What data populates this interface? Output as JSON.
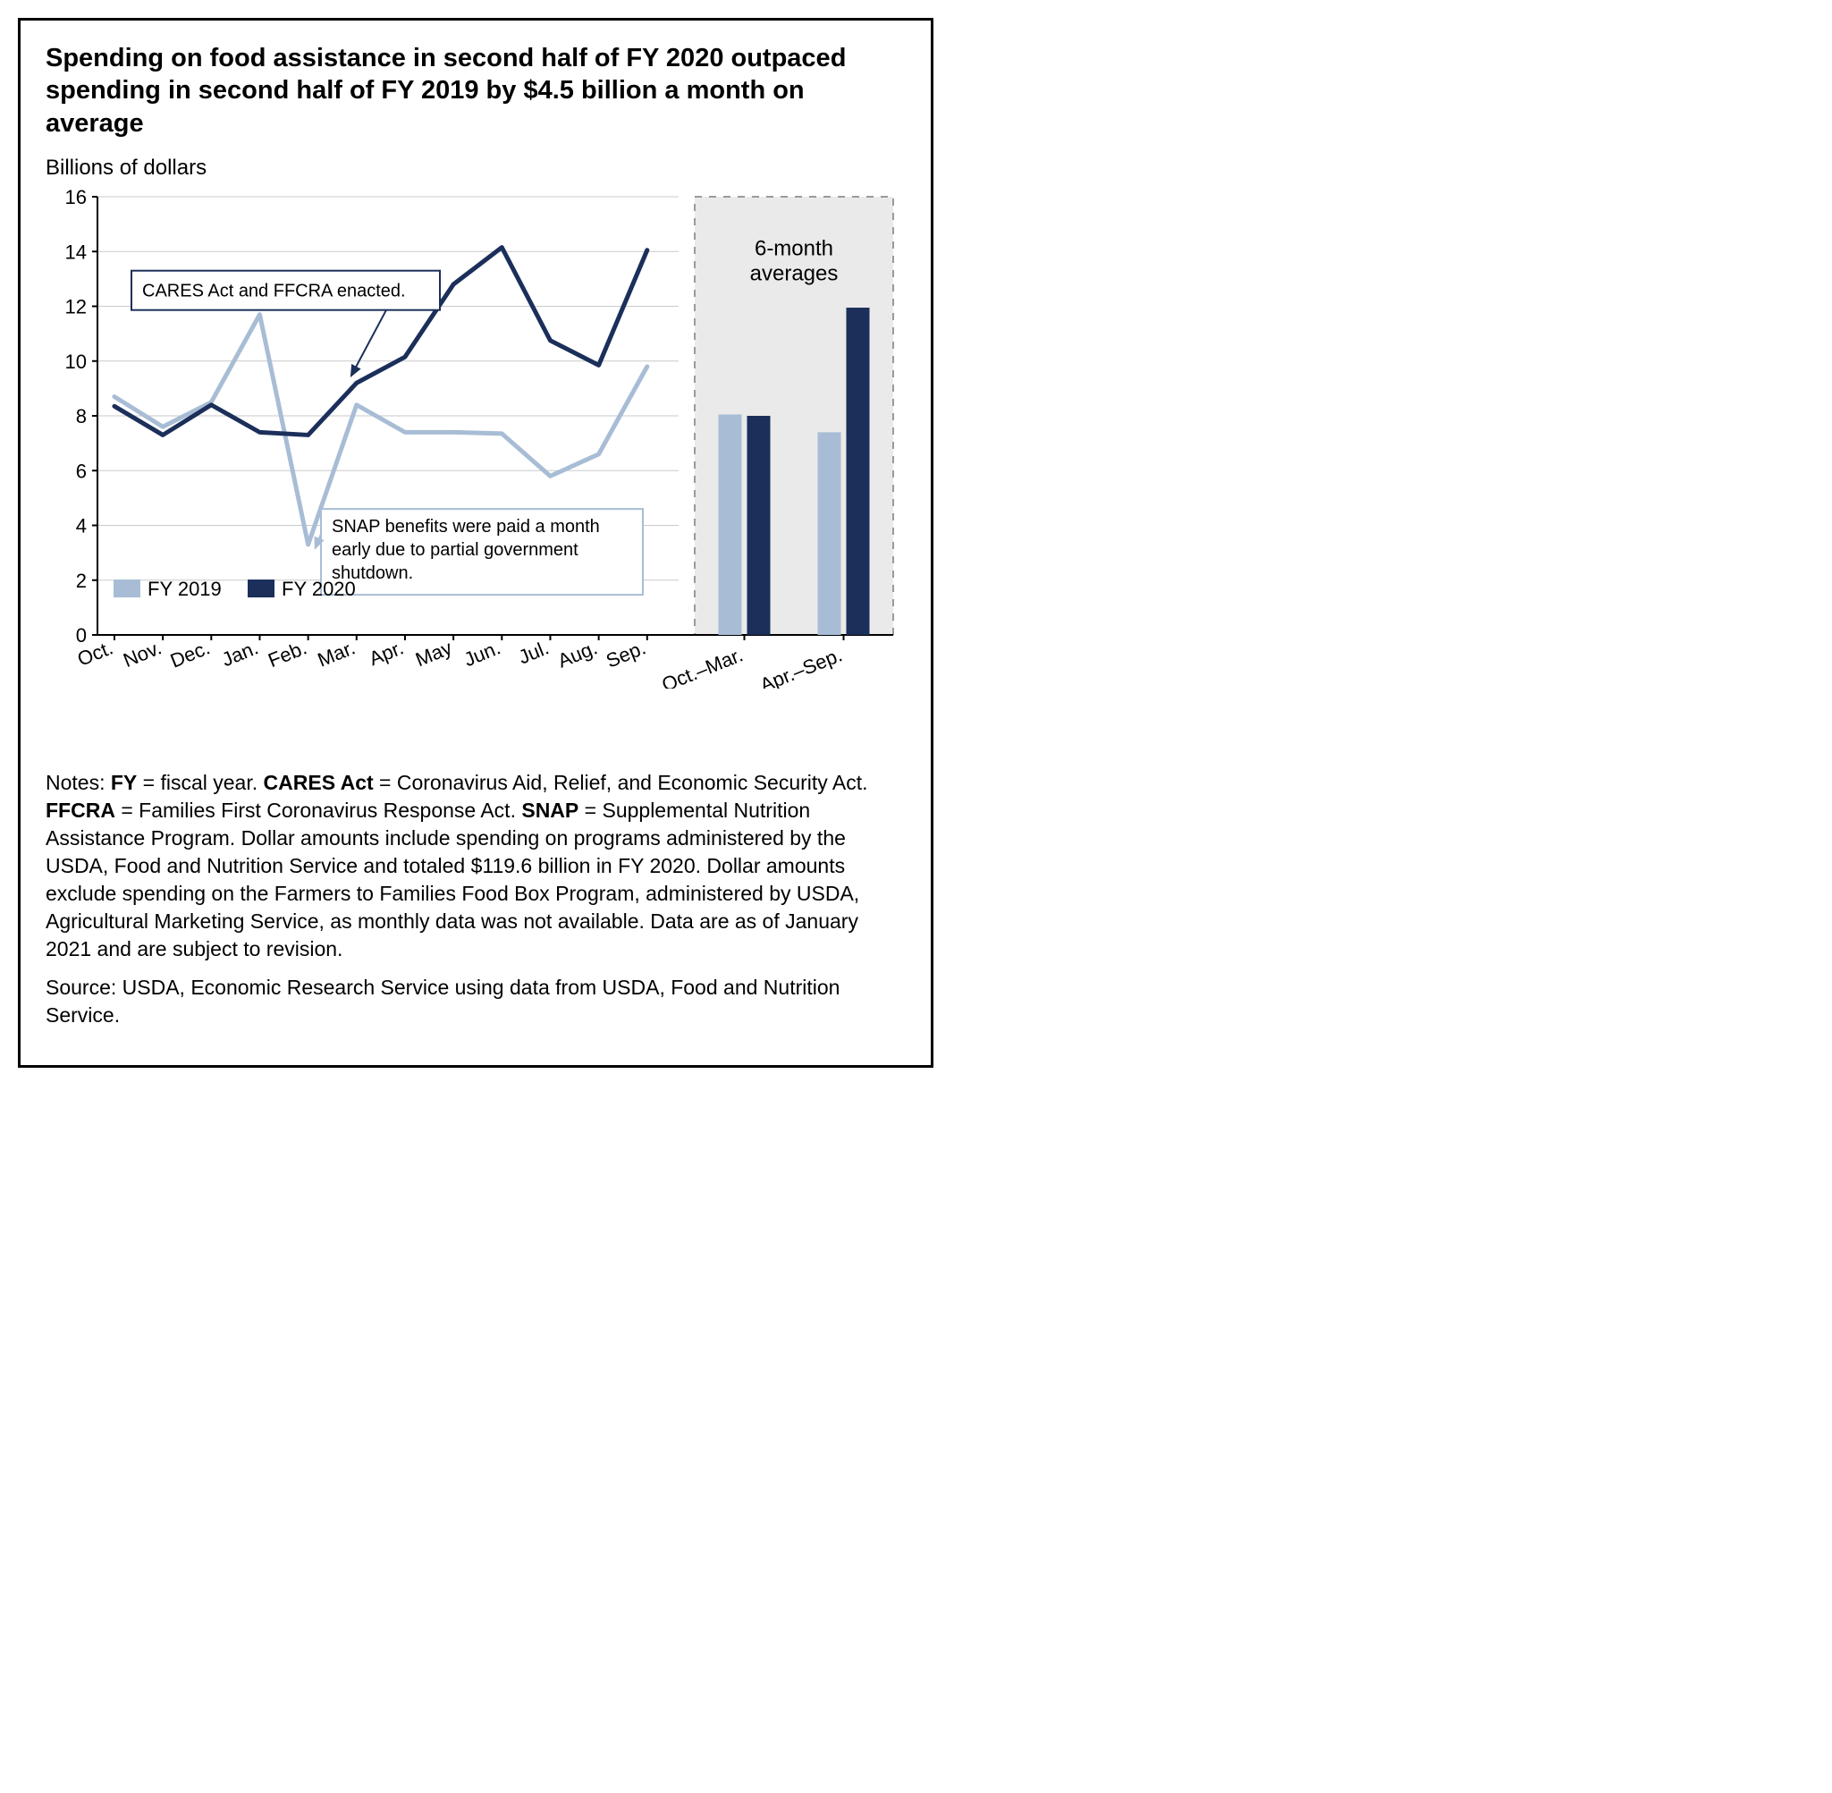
{
  "title": "Spending on food assistance in second half of FY 2020 outpaced spending in second half of FY 2019 by $4.5 billion a month on average",
  "y_axis_label": "Billions of dollars",
  "chart": {
    "type": "line+bar",
    "ylim": [
      0,
      16
    ],
    "ytick_step": 2,
    "yticks": [
      0,
      2,
      4,
      6,
      8,
      10,
      12,
      14,
      16
    ],
    "months": [
      "Oct.",
      "Nov.",
      "Dec.",
      "Jan.",
      "Feb.",
      "Mar.",
      "Apr.",
      "May",
      "Jun.",
      "Jul.",
      "Aug.",
      "Sep."
    ],
    "series": {
      "fy2019": {
        "label": "FY 2019",
        "color": "#a8bdd5",
        "line_width": 5,
        "values": [
          8.7,
          7.6,
          8.5,
          11.7,
          3.3,
          8.4,
          7.4,
          7.4,
          7.35,
          5.8,
          6.6,
          9.8
        ]
      },
      "fy2020": {
        "label": "FY 2020",
        "color": "#1b2f5a",
        "line_width": 5,
        "values": [
          8.35,
          7.3,
          8.4,
          7.4,
          7.3,
          9.2,
          10.15,
          12.8,
          14.15,
          10.75,
          9.85,
          14.05
        ]
      }
    },
    "bar_categories": [
      "Oct.–Mar.",
      "Apr.–Sep."
    ],
    "bars": {
      "fy2019": {
        "color": "#a8bdd5",
        "values": [
          8.05,
          7.4
        ]
      },
      "fy2020": {
        "color": "#1b2f5a",
        "values": [
          8.0,
          11.95
        ]
      }
    },
    "bar_panel_label": "6-month averages",
    "bar_panel_bg": "#eaeaea",
    "annotations": {
      "cares": {
        "text": "CARES Act and FFCRA enacted.",
        "border_color": "#1b2f5a",
        "arrow_color": "#1b2f5a"
      },
      "snap": {
        "text": "SNAP benefits were paid a month early due to partial government shutdown.",
        "border_color": "#a8bdd5",
        "arrow_color": "#a8bdd5"
      }
    },
    "legend": [
      {
        "label": "FY 2019",
        "color": "#a8bdd5"
      },
      {
        "label": "FY 2020",
        "color": "#1b2f5a"
      }
    ],
    "grid_color": "#c9c9c9",
    "axis_color": "#000000",
    "tick_font_size": 22,
    "label_font_size": 24,
    "annotation_font_size": 20,
    "legend_font_size": 22
  },
  "notes": "Notes: <b>FY</b> = fiscal year. <b>CARES Act</b> = Coronavirus Aid, Relief, and Economic Security Act. <b>FFCRA</b> = Families First Coronavirus Response Act. <b>SNAP</b> = Supplemental Nutrition Assistance Program. Dollar amounts include spending on programs administered by the USDA, Food and Nutrition Service and totaled $119.6 billion in FY 2020. Dollar amounts exclude spending on the Farmers to Families Food Box Program, administered by USDA, Agricultural Marketing Service, as monthly data was not available. Data are as of January 2021 and are subject to revision.",
  "source": "Source: USDA, Economic Research Service using data from USDA, Food and Nutrition Service."
}
